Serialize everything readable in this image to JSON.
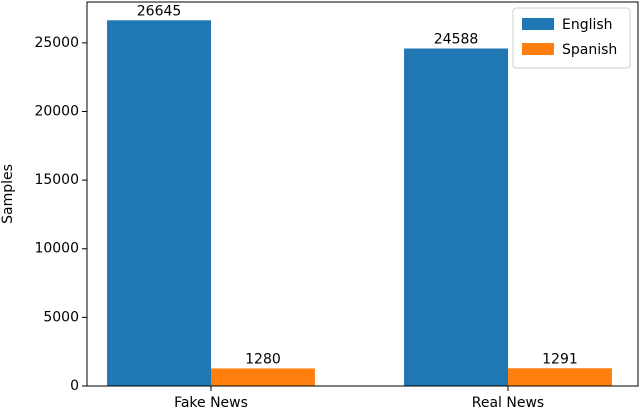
{
  "chart_data": {
    "type": "bar",
    "y_label": "Samples",
    "categories": [
      "Fake News",
      "Real News"
    ],
    "series": [
      {
        "name": "English",
        "color": "#1f77b4",
        "values": [
          26645,
          24588
        ]
      },
      {
        "name": "Spanish",
        "color": "#ff7f0e",
        "values": [
          1280,
          1291
        ]
      }
    ],
    "ylim": [
      0,
      27977
    ],
    "yticks": [
      0,
      5000,
      10000,
      15000,
      20000,
      25000
    ],
    "legend": "upper right"
  }
}
